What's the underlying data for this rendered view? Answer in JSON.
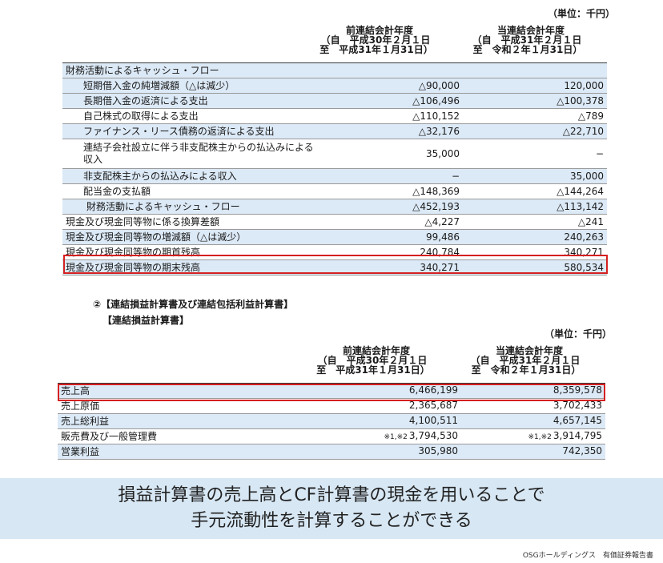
{
  "cf": {
    "unit": "（単位：千円）",
    "header": {
      "prev": [
        "前連結会計年度",
        "（自　平成30年２月１日",
        "至　平成31年１月31日）"
      ],
      "curr": [
        "当連結会計年度",
        "（自　平成31年２月１日",
        "至　令和２年１月31日）"
      ]
    },
    "rows": [
      {
        "label": "財務活動によるキャッシュ・フロー",
        "prev": "",
        "curr": ""
      },
      {
        "label": "短期借入金の純増減額（△は減少）",
        "prev": "△90,000",
        "curr": "120,000"
      },
      {
        "label": "長期借入金の返済による支出",
        "prev": "△106,496",
        "curr": "△100,378"
      },
      {
        "label": "自己株式の取得による支出",
        "prev": "△110,152",
        "curr": "△789"
      },
      {
        "label": "ファイナンス・リース債務の返済による支出",
        "prev": "△32,176",
        "curr": "△22,710"
      },
      {
        "label": "連結子会社設立に伴う非支配株主からの払込みによる収入",
        "prev": "35,000",
        "curr": "−"
      },
      {
        "label": "非支配株主からの払込みによる収入",
        "prev": "−",
        "curr": "35,000"
      },
      {
        "label": "配当金の支払額",
        "prev": "△148,369",
        "curr": "△144,264"
      },
      {
        "label": "財務活動によるキャッシュ・フロー",
        "prev": "△452,193",
        "curr": "△113,142"
      },
      {
        "label": "現金及び現金同等物に係る換算差額",
        "prev": "△4,227",
        "curr": "△241"
      },
      {
        "label": "現金及び現金同等物の増減額（△は減少）",
        "prev": "99,486",
        "curr": "240,263"
      },
      {
        "label": "現金及び現金同等物の期首残高",
        "prev": "240,784",
        "curr": "340,271"
      },
      {
        "label": "現金及び現金同等物の期末残高",
        "prev": "340,271",
        "curr": "580,534"
      }
    ]
  },
  "pl": {
    "section_title": "②【連結損益計算書及び連結包括利益計算書】",
    "sub_title": "【連結損益計算書】",
    "unit": "（単位：千円）",
    "header": {
      "prev": [
        "前連結会計年度",
        "（自　平成30年２月１日",
        "至　平成31年１月31日）"
      ],
      "curr": [
        "当連結会計年度",
        "（自　平成31年２月１日",
        "至　令和２年１月31日）"
      ]
    },
    "rows": [
      {
        "label": "売上高",
        "prev_note": "",
        "prev": "6,466,199",
        "curr_note": "",
        "curr": "8,359,578"
      },
      {
        "label": "売上原価",
        "prev_note": "",
        "prev": "2,365,687",
        "curr_note": "",
        "curr": "3,702,433"
      },
      {
        "label": "売上総利益",
        "prev_note": "",
        "prev": "4,100,511",
        "curr_note": "",
        "curr": "4,657,145"
      },
      {
        "label": "販売費及び一般管理費",
        "prev_note": "※1,※2",
        "prev": "3,794,530",
        "curr_note": "※1,※2",
        "curr": "3,914,795"
      },
      {
        "label": "営業利益",
        "prev_note": "",
        "prev": "305,980",
        "curr_note": "",
        "curr": "742,350"
      }
    ]
  },
  "banner": {
    "line1": "損益計算書の売上高とCF計算書の現金を用いることで",
    "line2": "手元流動性を計算することができる"
  },
  "source": "OSGホールディングス　有価証券報告書",
  "colors": {
    "highlight_box": "#d62020",
    "row_blue": "#dce9f6",
    "banner_bg": "#d7e7f4"
  }
}
